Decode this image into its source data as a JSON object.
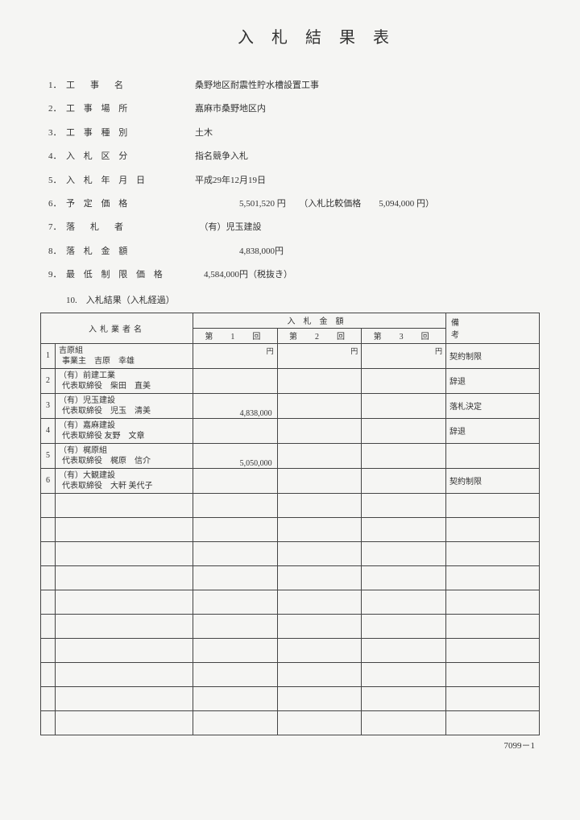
{
  "title": "入札結果表",
  "info": [
    {
      "num": "1．",
      "label": "工　事　名",
      "value": "桑野地区耐震性貯水槽設置工事"
    },
    {
      "num": "2．",
      "label": "工 事 場 所",
      "value": "嘉麻市桑野地区内"
    },
    {
      "num": "3．",
      "label": "工 事 種 別",
      "value": "土木"
    },
    {
      "num": "4．",
      "label": "入 札 区 分",
      "value": "指名競争入札"
    },
    {
      "num": "5．",
      "label": "入 札 年 月 日",
      "value": "平成29年12月19日"
    },
    {
      "num": "6．",
      "label": "予 定 価 格",
      "value": "　　　　　5,501,520 円　　（入札比較価格　　5,094,000 円）"
    },
    {
      "num": "7．",
      "label": "落　札　者",
      "value": "　（有）児玉建設"
    },
    {
      "num": "8．",
      "label": "落 札 金 額",
      "value": "　　　　　4,838,000円"
    },
    {
      "num": "9．",
      "label": "最 低 制 限 価 格",
      "value": "　4,584,000円（税抜き）"
    }
  ],
  "item10": "10.　入札結果（入札経過）",
  "table": {
    "headers": {
      "bidder": "入札業者名",
      "amount_sup": "入札金額",
      "round1": "第　1　回",
      "round2": "第　2　回",
      "round3": "第　3　回",
      "biko": "備考"
    },
    "yen_label": "円",
    "rows": [
      {
        "n": "1",
        "l1": "吉原組",
        "l2": "事業主　吉原　幸雄",
        "a1": "",
        "a2": "",
        "a3": "",
        "biko": "契約制限"
      },
      {
        "n": "2",
        "l1": "（有）前建工業",
        "l2": "代表取締役　柴田　直美",
        "a1": "",
        "a2": "",
        "a3": "",
        "biko": "辞退"
      },
      {
        "n": "3",
        "l1": "（有）児玉建設",
        "l2": "代表取締役　児玉　清美",
        "a1": "4,838,000",
        "a2": "",
        "a3": "",
        "biko": "落札決定"
      },
      {
        "n": "4",
        "l1": "（有）嘉麻建設",
        "l2": "代表取締役 友野　文章",
        "a1": "",
        "a2": "",
        "a3": "",
        "biko": "辞退"
      },
      {
        "n": "5",
        "l1": "（有）梶原組",
        "l2": "代表取締役　梶原　信介",
        "a1": "5,050,000",
        "a2": "",
        "a3": "",
        "biko": ""
      },
      {
        "n": "6",
        "l1": "（有）大観建設",
        "l2": "代表取締役　大軒 美代子",
        "a1": "",
        "a2": "",
        "a3": "",
        "biko": "契約制限"
      }
    ],
    "empty_rows": 10
  },
  "footer": "7099－1"
}
